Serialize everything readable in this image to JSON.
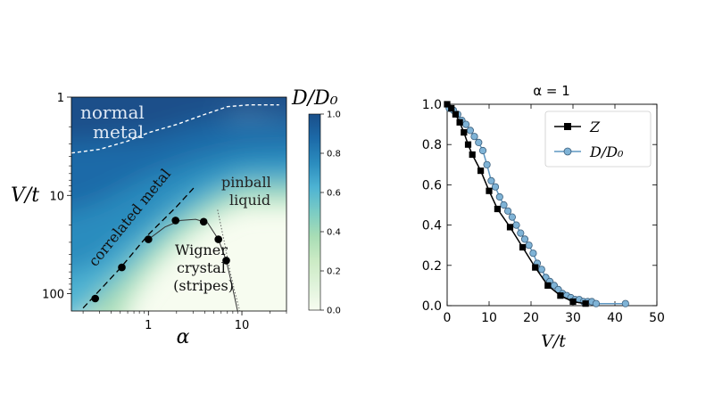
{
  "chart_data": [
    {
      "type": "heatmap",
      "title": "",
      "xlabel": "α",
      "ylabel": "V/t",
      "x_scale": "log",
      "y_scale": "log",
      "y_inverted": true,
      "xlim": [
        0.15,
        30
      ],
      "ylim": [
        1,
        150
      ],
      "x_ticks": [
        {
          "value": 1,
          "label": "1"
        },
        {
          "value": 10,
          "label": "10"
        }
      ],
      "y_ticks": [
        {
          "value": 1,
          "label": "1"
        },
        {
          "value": 10,
          "label": "10"
        },
        {
          "value": 100,
          "label": "100"
        }
      ],
      "colorbar": {
        "label": "D/D₀",
        "range": [
          0,
          1
        ],
        "ticks": [
          "0.0",
          "0.2",
          "0.4",
          "0.6",
          "0.8",
          "1.0"
        ],
        "colors": [
          "#f7fcf0",
          "#e0f3db",
          "#ccebc5",
          "#a8ddb5",
          "#7bccc4",
          "#4eb3d3",
          "#2b8cbe",
          "#1c6aa8",
          "#1a4f8a"
        ]
      },
      "regions": [
        {
          "label_lines": [
            "normal",
            "metal"
          ],
          "color": "#dfe9f5"
        },
        {
          "label_lines": [
            "correlated metal"
          ],
          "color": "#111111"
        },
        {
          "label_lines": [
            "pinball",
            "liquid"
          ],
          "color": "#222222"
        },
        {
          "label_lines": [
            "Wigner",
            "crystal",
            "(stripes)"
          ],
          "color": "#111111"
        }
      ],
      "boundary_normal_metal": [
        [
          0.15,
          3.7
        ],
        [
          0.3,
          3.4
        ],
        [
          0.6,
          2.8
        ],
        [
          1,
          2.3
        ],
        [
          2,
          1.9
        ],
        [
          4,
          1.5
        ],
        [
          7,
          1.25
        ],
        [
          12,
          1.2
        ],
        [
          25,
          1.2
        ]
      ],
      "boundary_correlated_metal": [
        [
          0.2,
          140
        ],
        [
          0.5,
          55
        ],
        [
          1,
          25
        ],
        [
          2,
          13
        ],
        [
          3.2,
          8
        ]
      ],
      "wigner_points": [
        [
          0.27,
          112
        ],
        [
          0.52,
          54
        ],
        [
          1.0,
          28
        ],
        [
          1.95,
          18
        ],
        [
          3.9,
          18.5
        ],
        [
          5.6,
          28
        ],
        [
          6.8,
          46
        ]
      ],
      "wigner_boundary": [
        [
          1.0,
          28
        ],
        [
          1.5,
          21
        ],
        [
          2.2,
          18
        ],
        [
          3.2,
          17.5
        ],
        [
          4.3,
          19
        ],
        [
          5.6,
          28
        ],
        [
          6.8,
          46
        ],
        [
          7.8,
          80
        ],
        [
          9.0,
          150
        ]
      ],
      "pinball_boundary": [
        [
          5.5,
          14
        ],
        [
          6.5,
          30
        ],
        [
          7.5,
          60
        ],
        [
          8.5,
          100
        ],
        [
          9.5,
          150
        ]
      ]
    },
    {
      "type": "line",
      "title": "α = 1",
      "xlabel": "V/t",
      "ylabel": "",
      "xlim": [
        0,
        50
      ],
      "ylim": [
        0,
        1
      ],
      "x_ticks": [
        "0",
        "10",
        "20",
        "30",
        "40",
        "50"
      ],
      "y_ticks": [
        "0.0",
        "0.2",
        "0.4",
        "0.6",
        "0.8",
        "1.0"
      ],
      "legend_position": "top-right",
      "series": [
        {
          "name": "Z",
          "color": "#000000",
          "marker": "square",
          "x": [
            0,
            1,
            2,
            3,
            4,
            5,
            6,
            8,
            10,
            12,
            15,
            18,
            21,
            24,
            27,
            30,
            33
          ],
          "y": [
            1.0,
            0.98,
            0.95,
            0.91,
            0.86,
            0.8,
            0.75,
            0.67,
            0.57,
            0.48,
            0.39,
            0.29,
            0.19,
            0.1,
            0.05,
            0.02,
            0.01
          ]
        },
        {
          "name": "D/D₀",
          "color": "#5e97c2",
          "marker": "circle",
          "x": [
            0.5,
            1.5,
            2.5,
            3.5,
            4.5,
            5.5,
            6.5,
            7.5,
            8.5,
            9.5,
            10.5,
            11.5,
            12.5,
            13.5,
            14.5,
            15.5,
            16.5,
            17.5,
            18.5,
            19.5,
            20.5,
            21.5,
            22.5,
            23.5,
            24.5,
            25.5,
            26.5,
            27.5,
            28.5,
            29.5,
            30.5,
            31.5,
            32.5,
            33.5,
            34.5,
            35.5,
            42.5
          ],
          "y": [
            0.98,
            0.97,
            0.95,
            0.92,
            0.9,
            0.87,
            0.84,
            0.81,
            0.77,
            0.7,
            0.62,
            0.59,
            0.54,
            0.5,
            0.47,
            0.44,
            0.4,
            0.36,
            0.33,
            0.3,
            0.26,
            0.21,
            0.18,
            0.14,
            0.12,
            0.1,
            0.08,
            0.06,
            0.05,
            0.04,
            0.03,
            0.03,
            0.02,
            0.02,
            0.02,
            0.01,
            0.01
          ]
        }
      ]
    }
  ]
}
